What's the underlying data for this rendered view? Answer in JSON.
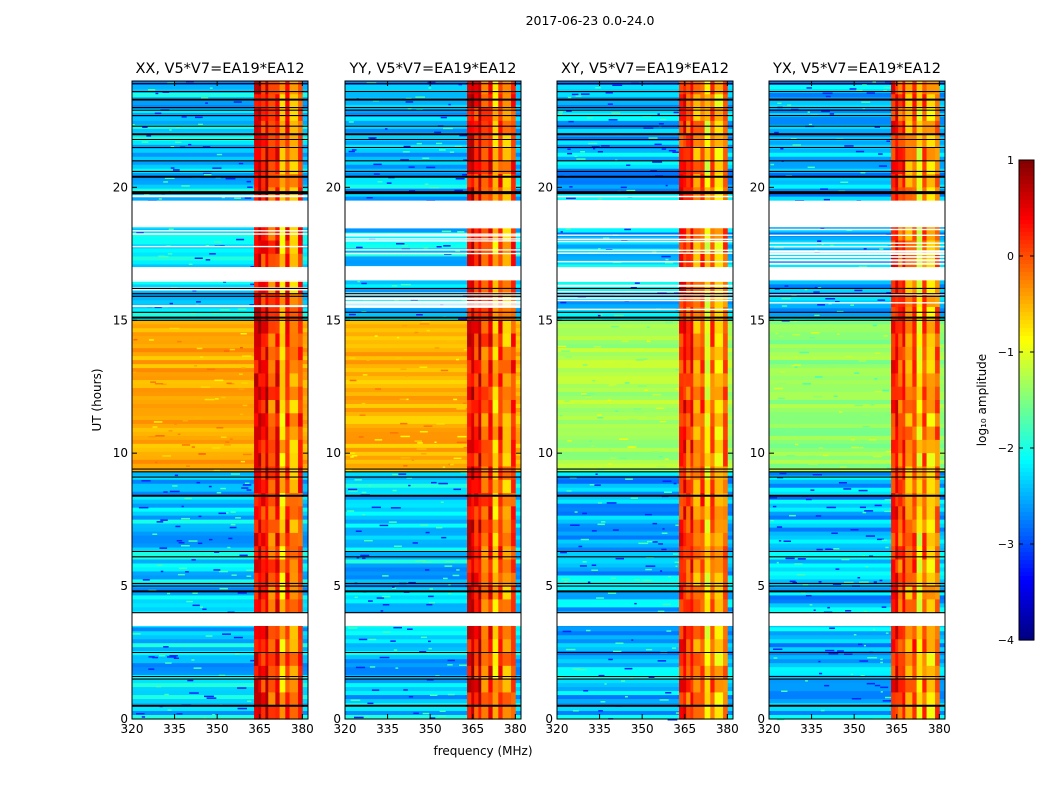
{
  "figure": {
    "suptitle": "2017-06-23 0.0-24.0",
    "xlabel": "frequency (MHz)",
    "ylabel": "UT (hours)"
  },
  "chart_data": {
    "type": "heatmap",
    "panels": [
      {
        "title": "XX, V5*V7=EA19*EA12",
        "day_level": -0.45
      },
      {
        "title": "YY, V5*V7=EA19*EA12",
        "day_level": -0.5
      },
      {
        "title": "XY, V5*V7=EA19*EA12",
        "day_level": -1.3
      },
      {
        "title": "YX, V5*V7=EA19*EA12",
        "day_level": -1.4
      }
    ],
    "x_range_mhz": [
      320,
      382
    ],
    "x_ticks": [
      320,
      335,
      350,
      365,
      380
    ],
    "x_tick_labels": [
      "320",
      "335",
      "350",
      "365",
      "380"
    ],
    "y_range_hours": [
      0,
      24
    ],
    "y_ticks": [
      0,
      5,
      10,
      15,
      20
    ],
    "y_tick_labels": [
      "0",
      "5",
      "10",
      "15",
      "20"
    ],
    "colorbar": {
      "label": "log₁₀ amplitude",
      "range": [
        -4,
        1
      ],
      "ticks": [
        1,
        0,
        -1,
        -2,
        -3,
        -4
      ],
      "tick_labels": [
        "1",
        "0",
        "−1",
        "−2",
        "−3",
        "−4"
      ],
      "colormap": "jet"
    },
    "rfi_band_mhz": [
      363,
      380
    ],
    "day_period_hours": [
      9.3,
      15.0
    ],
    "flagged_gaps_hours": [
      [
        3.5,
        4.0
      ],
      [
        16.5,
        17.0
      ],
      [
        18.5,
        19.5
      ]
    ],
    "black_line_hours": [
      0.5,
      1.5,
      1.6,
      2.5,
      4.0,
      4.8,
      5.0,
      5.1,
      6.1,
      6.3,
      8.4,
      9.1,
      9.3,
      9.4,
      15.0,
      15.1,
      15.3,
      15.9,
      16.0,
      16.2,
      20.4,
      20.6,
      21.0,
      21.5,
      21.8,
      22.0,
      22.3,
      22.7,
      22.9,
      23.0,
      23.3,
      23.6,
      23.9
    ]
  }
}
